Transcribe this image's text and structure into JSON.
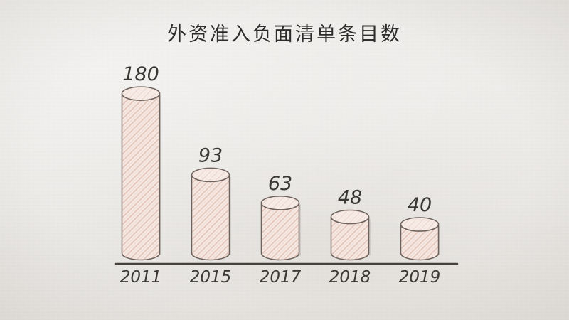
{
  "chart_data": {
    "type": "bar",
    "title": "外资准入负面清单条目数",
    "categories": [
      "2011",
      "2015",
      "2017",
      "2018",
      "2019"
    ],
    "values": [
      180,
      93,
      63,
      48,
      40
    ],
    "xlabel": "",
    "ylabel": "",
    "ylim": [
      0,
      200
    ],
    "grid": false,
    "legend": false,
    "value_labels_shown": true,
    "bar_style": "hand-drawn-cylinder",
    "axes_shown": "x-baseline-only"
  },
  "style": {
    "background": "#e9e7e4",
    "cylinder_fill": "#f6e8e2",
    "cylinder_top_fill": "#f7ece7",
    "hatch_color": "#e0c0b4",
    "outline_color": "#6e625d",
    "shadow_color": "#8d817a",
    "axis_line_color": "#44403c",
    "title_color": "#2d2c2a",
    "label_color": "#393734"
  }
}
